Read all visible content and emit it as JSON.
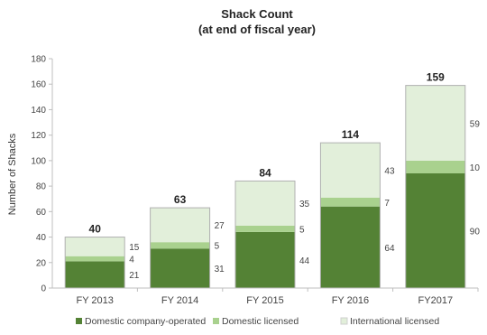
{
  "chart_data": {
    "type": "bar",
    "stacked": true,
    "title": "Shack Count",
    "subtitle": "(at end of fiscal year)",
    "ylabel": "Number of Shacks",
    "xlabel": "",
    "ylim": [
      0,
      180
    ],
    "yticks": [
      0,
      20,
      40,
      60,
      80,
      100,
      120,
      140,
      160,
      180
    ],
    "categories": [
      "FY 2013",
      "FY 2014",
      "FY 2015",
      "FY 2016",
      "FY2017"
    ],
    "series": [
      {
        "name": "Domestic company-operated",
        "values": [
          21,
          31,
          44,
          64,
          90
        ],
        "color": "#548235"
      },
      {
        "name": "Domestic licensed",
        "values": [
          4,
          5,
          5,
          7,
          10
        ],
        "color": "#a9d18e"
      },
      {
        "name": "International licensed",
        "values": [
          15,
          27,
          35,
          43,
          59
        ],
        "color": "#e2efda"
      }
    ],
    "totals": [
      40,
      63,
      84,
      114,
      159
    ],
    "legend_position": "bottom",
    "grid": false
  }
}
